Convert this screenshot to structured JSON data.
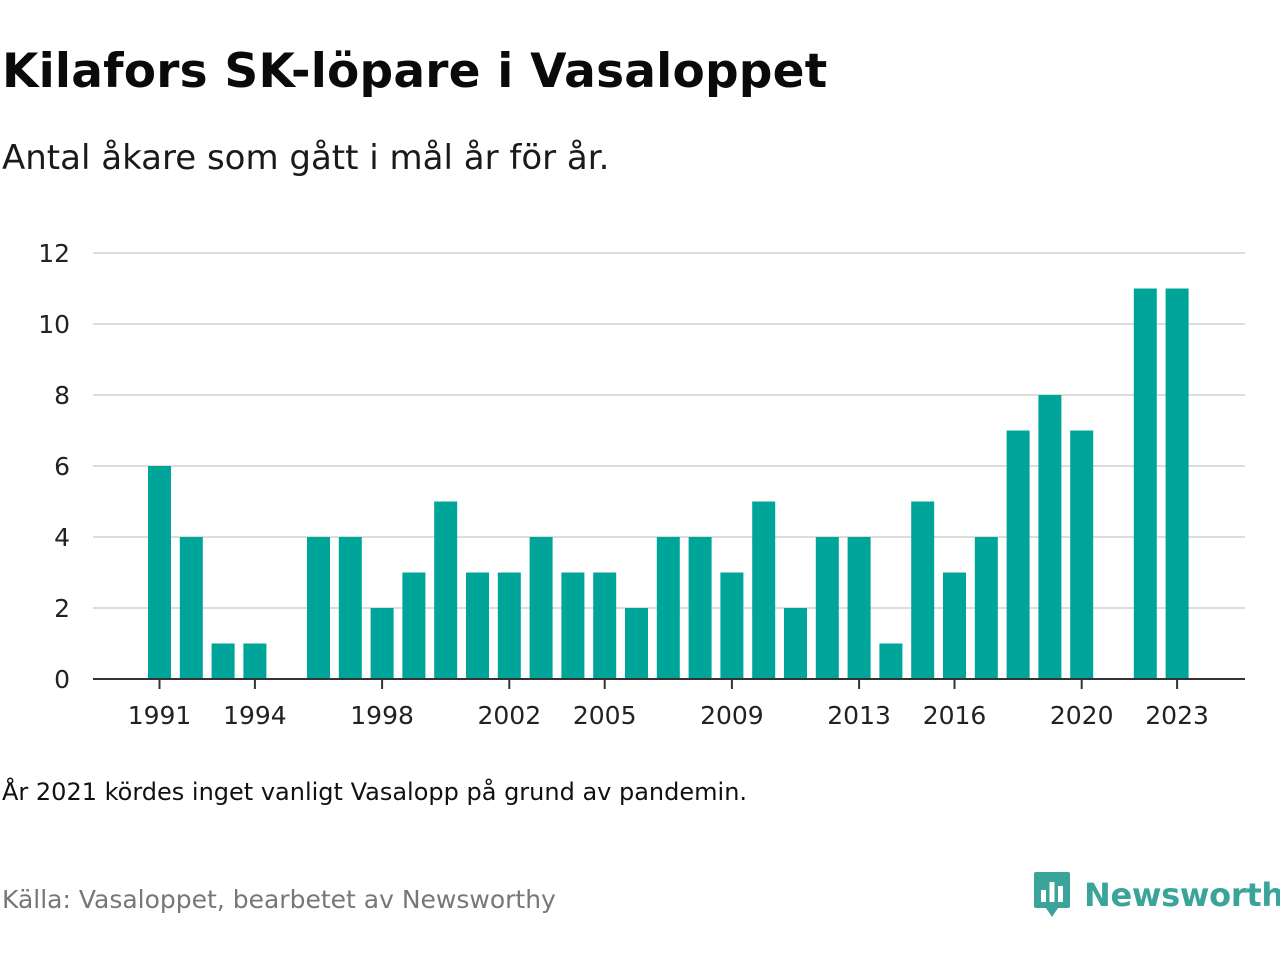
{
  "title": "Kilafors SK-löpare i Vasaloppet",
  "subtitle": "Antal åkare som gått i mål år för år.",
  "note": "År 2021 kördes inget vanligt Vasalopp på grund av pandemin.",
  "source": "Källa: Vasaloppet, bearbetet av Newsworthy",
  "brand": {
    "name": "Newsworthy",
    "icon": "newsworthy-logo-icon"
  },
  "colors": {
    "bar": "#00a599",
    "grid": "#dddddd",
    "axis": "#333333",
    "brand": "#3aa39a"
  },
  "chart_data": {
    "type": "bar",
    "title": "Kilafors SK-löpare i Vasaloppet",
    "subtitle": "Antal åkare som gått i mål år för år.",
    "xlabel": "",
    "ylabel": "",
    "ylim": [
      0,
      12
    ],
    "yticks": [
      "0",
      "2",
      "4",
      "6",
      "8",
      "10",
      "12"
    ],
    "xticks": [
      "1991",
      "1994",
      "1998",
      "2002",
      "2005",
      "2009",
      "2013",
      "2016",
      "2020",
      "2023"
    ],
    "grid": true,
    "legend": "none",
    "categories": [
      1991,
      1992,
      1993,
      1994,
      1995,
      1996,
      1997,
      1998,
      1999,
      2000,
      2001,
      2002,
      2003,
      2004,
      2005,
      2006,
      2007,
      2008,
      2009,
      2010,
      2011,
      2012,
      2013,
      2014,
      2015,
      2016,
      2017,
      2018,
      2019,
      2020,
      2021,
      2022,
      2023
    ],
    "values": [
      6,
      4,
      1,
      1,
      null,
      4,
      4,
      2,
      3,
      5,
      3,
      3,
      4,
      3,
      3,
      2,
      4,
      4,
      3,
      5,
      2,
      4,
      4,
      1,
      5,
      3,
      4,
      7,
      8,
      7,
      null,
      11,
      11
    ]
  }
}
